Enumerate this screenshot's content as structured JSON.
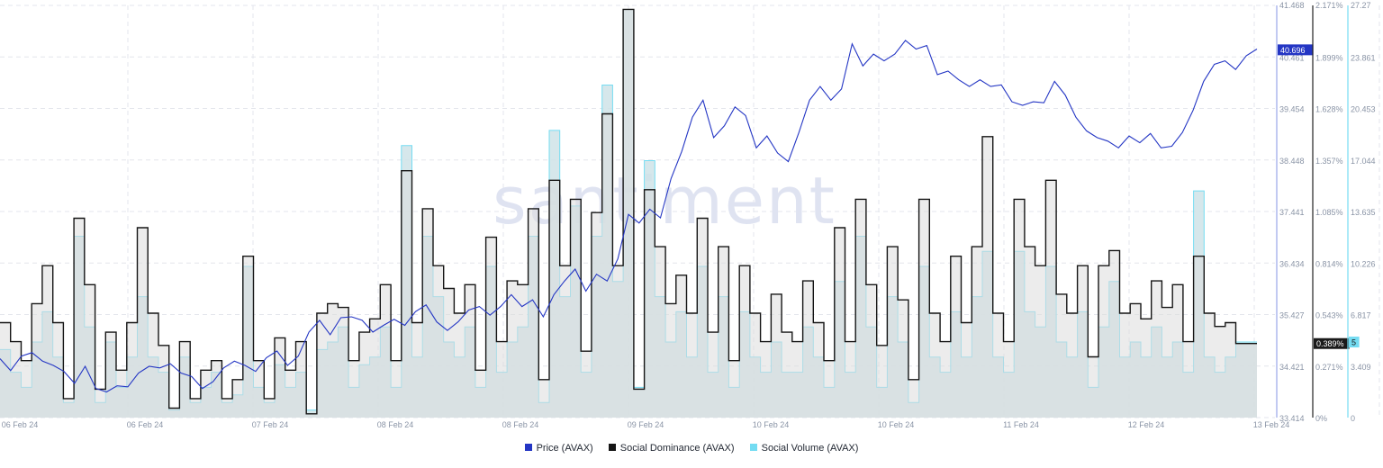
{
  "watermark": "santiment",
  "colors": {
    "price": "#2436c4",
    "dominance": "#151515",
    "dominance_fill": "#dcdcdc",
    "volume": "#74dcf2",
    "volume_fill": "#cfe3e8",
    "grid": "#e3e6ec"
  },
  "chart_data": {
    "type": "line",
    "x_ticks": [
      "06 Feb 24",
      "06 Feb 24",
      "07 Feb 24",
      "08 Feb 24",
      "08 Feb 24",
      "09 Feb 24",
      "10 Feb 24",
      "10 Feb 24",
      "11 Feb 24",
      "12 Feb 24",
      "13 Feb 24"
    ],
    "axes": {
      "price": {
        "ticks": [
          "41.468",
          "40.461",
          "39.454",
          "38.448",
          "37.441",
          "36.434",
          "35.427",
          "34.421",
          "33.414"
        ],
        "ylim": [
          33.414,
          41.468
        ],
        "current_label": "40.696"
      },
      "dominance": {
        "ticks": [
          "2.171%",
          "1.899%",
          "1.628%",
          "1.357%",
          "1.085%",
          "0.814%",
          "0.543%",
          "0.271%",
          "0%"
        ],
        "ylim": [
          0,
          2.171
        ],
        "current_label": "0.389%"
      },
      "volume": {
        "ticks": [
          "27.27",
          "23.861",
          "20.453",
          "17.044",
          "13.635",
          "10.226",
          "6.817",
          "3.409",
          "0"
        ],
        "ylim": [
          0,
          27.27
        ],
        "current_label": "5"
      }
    },
    "series": [
      {
        "name": "Price (AVAX)",
        "values": [
          34.55,
          34.35,
          34.6,
          34.7,
          34.5,
          34.45,
          34.3,
          34.1,
          34.4,
          34.0,
          33.9,
          34.05,
          34.0,
          34.3,
          34.4,
          34.4,
          34.45,
          34.3,
          34.2,
          34.0,
          34.1,
          34.4,
          34.5,
          34.45,
          34.3,
          34.6,
          34.7,
          34.45,
          34.6,
          35.1,
          35.3,
          35.05,
          35.35,
          35.4,
          35.3,
          35.1,
          35.2,
          35.35,
          35.2,
          35.5,
          35.6,
          35.3,
          35.1,
          35.3,
          35.5,
          35.6,
          35.4,
          35.6,
          35.8,
          35.6,
          35.7,
          35.4,
          35.8,
          36.1,
          36.3,
          35.9,
          36.2,
          36.1,
          36.5,
          37.4,
          37.2,
          37.5,
          37.3,
          38.1,
          38.6,
          39.3,
          39.6,
          38.9,
          39.1,
          39.5,
          39.3,
          38.7,
          38.9,
          38.6,
          38.4,
          39.0,
          39.6,
          39.9,
          39.6,
          39.85,
          40.7,
          40.3,
          40.5,
          40.4,
          40.5,
          40.8,
          40.6,
          40.7,
          40.1,
          40.2,
          40.0,
          39.9,
          40.0,
          39.9,
          39.9,
          39.6,
          39.5,
          39.6,
          39.55,
          40.0,
          39.7,
          39.3,
          39.0,
          38.9,
          38.8,
          38.7,
          38.9,
          38.8,
          38.95,
          38.7,
          38.7,
          39.0,
          39.4,
          40.0,
          40.3,
          40.4,
          40.2,
          40.5,
          40.6
        ]
      },
      {
        "name": "Social Dominance (AVAX)",
        "values": [
          0.5,
          0.4,
          0.3,
          0.6,
          0.8,
          0.5,
          0.1,
          1.05,
          0.7,
          0.15,
          0.45,
          0.25,
          0.5,
          1.0,
          0.55,
          0.38,
          0.05,
          0.4,
          0.1,
          0.25,
          0.3,
          0.1,
          0.2,
          0.85,
          0.3,
          0.1,
          0.42,
          0.25,
          0.4,
          0.02,
          0.55,
          0.6,
          0.58,
          0.3,
          0.45,
          0.52,
          0.7,
          0.3,
          1.3,
          0.5,
          1.1,
          0.8,
          0.68,
          0.55,
          0.7,
          0.25,
          0.95,
          0.4,
          0.72,
          0.7,
          1.1,
          0.2,
          1.25,
          0.8,
          1.15,
          0.35,
          1.08,
          1.6,
          0.8,
          2.15,
          0.15,
          1.2,
          0.9,
          0.6,
          0.75,
          0.55,
          1.05,
          0.45,
          0.9,
          0.3,
          0.8,
          0.55,
          0.4,
          0.65,
          0.45,
          0.4,
          0.72,
          0.5,
          0.3,
          1.0,
          0.4,
          1.15,
          0.7,
          0.38,
          0.9,
          0.62,
          0.2,
          1.15,
          0.55,
          0.4,
          0.85,
          0.5,
          0.9,
          1.48,
          0.55,
          0.4,
          1.15,
          0.9,
          0.8,
          1.25,
          0.65,
          0.55,
          0.8,
          0.32,
          0.8,
          0.88,
          0.55,
          0.6,
          0.52,
          0.72,
          0.58,
          0.7,
          0.4,
          0.85,
          0.55,
          0.48,
          0.5,
          0.39,
          0.39
        ]
      },
      {
        "name": "Social Volume (AVAX)",
        "values": [
          4.5,
          3.0,
          2.0,
          5.0,
          7.0,
          4.0,
          1.0,
          12.0,
          6.0,
          1.0,
          5.0,
          2.0,
          4.0,
          8.0,
          4.0,
          3.0,
          0.5,
          4.0,
          1.0,
          2.0,
          3.0,
          1.0,
          1.5,
          10.0,
          2.0,
          1.0,
          3.5,
          2.0,
          3.0,
          0.5,
          4.5,
          5.0,
          6.0,
          2.0,
          3.5,
          4.0,
          6.0,
          2.0,
          18.0,
          4.0,
          12.0,
          8.0,
          5.0,
          4.0,
          6.0,
          2.0,
          10.0,
          3.0,
          5.0,
          6.0,
          12.0,
          1.0,
          19.0,
          8.0,
          14.0,
          3.0,
          12.0,
          22.0,
          9.0,
          27.0,
          2.0,
          17.0,
          8.0,
          5.0,
          7.0,
          4.0,
          10.0,
          3.0,
          8.0,
          2.0,
          7.0,
          4.0,
          3.0,
          5.0,
          3.0,
          3.0,
          6.0,
          4.0,
          2.0,
          9.0,
          3.0,
          12.0,
          6.0,
          2.0,
          8.0,
          5.0,
          1.0,
          10.0,
          4.0,
          3.0,
          7.0,
          4.0,
          8.0,
          11.0,
          4.0,
          3.0,
          11.0,
          7.0,
          6.0,
          10.0,
          5.0,
          4.0,
          7.0,
          2.0,
          6.0,
          9.0,
          4.0,
          5.0,
          4.0,
          6.0,
          4.0,
          5.0,
          3.0,
          15.0,
          4.0,
          3.0,
          4.0,
          5.0,
          5.0
        ]
      }
    ]
  },
  "legend": [
    {
      "label": "Price (AVAX)",
      "color": "#2436c4"
    },
    {
      "label": "Social Dominance (AVAX)",
      "color": "#151515"
    },
    {
      "label": "Social Volume (AVAX)",
      "color": "#74dcf2"
    }
  ]
}
